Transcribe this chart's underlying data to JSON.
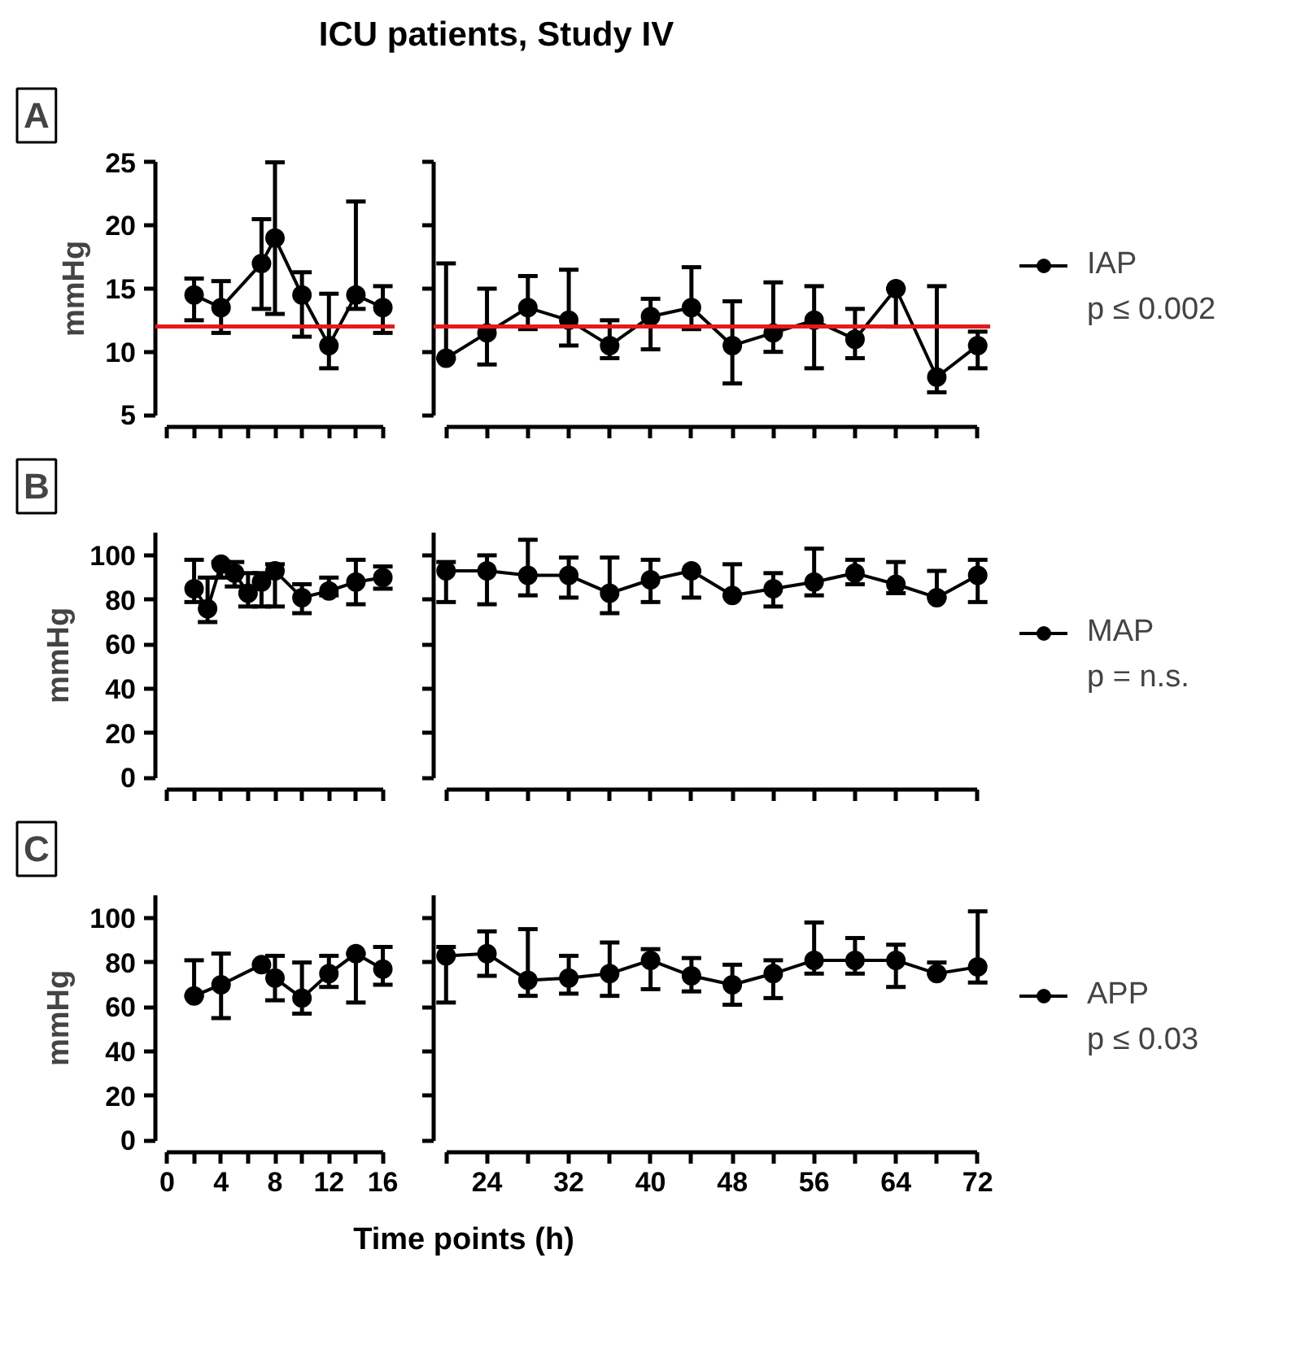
{
  "chart_data": [
    {
      "type": "line",
      "title": "ICU patients, Study IV",
      "ylabel": "mmHg",
      "annotations": [
        "A"
      ],
      "marker": "circle",
      "tick_labels": "y",
      "x": [
        2,
        4,
        7,
        8,
        10,
        12,
        14,
        16
      ],
      "xlim": [
        0,
        16
      ],
      "xticks": [
        0,
        {
          "value": 2,
          "label": null
        },
        4,
        {
          "value": 6,
          "label": null
        },
        8,
        {
          "value": 10,
          "label": null
        },
        12,
        {
          "value": 14,
          "label": null
        },
        16
      ],
      "ylim": [
        5,
        25
      ],
      "yticks": [
        5,
        10,
        15,
        20,
        25
      ],
      "ref_lines": [
        {
          "axis": "y",
          "value": 12,
          "color": "#e41a1c"
        }
      ],
      "series": [
        {
          "color": "#000000",
          "values": [
            14.5,
            13.5,
            17,
            19,
            14.5,
            10.5,
            14.5,
            13.5
          ],
          "errors": [
            [
              12.5,
              15.8
            ],
            [
              11.5,
              15.6
            ],
            [
              13.4,
              20.5
            ],
            [
              13,
              25
            ],
            [
              11.2,
              16.3
            ],
            [
              8.7,
              14.6
            ],
            [
              13.4,
              21.9
            ],
            [
              11.5,
              15.2
            ]
          ]
        }
      ]
    },
    {
      "type": "line",
      "annotations": [
        "p ≤ 0.002"
      ],
      "legend": "right",
      "marker": "circle",
      "tick_labels": false,
      "x": [
        20,
        24,
        28,
        32,
        36,
        40,
        44,
        48,
        52,
        56,
        60,
        64,
        68,
        72
      ],
      "xlim": [
        20,
        72
      ],
      "xticks": [
        {
          "value": 20,
          "label": null
        },
        24,
        {
          "value": 28,
          "label": null
        },
        32,
        {
          "value": 36,
          "label": null
        },
        40,
        {
          "value": 44,
          "label": null
        },
        48,
        {
          "value": 52,
          "label": null
        },
        56,
        {
          "value": 60,
          "label": null
        },
        64,
        {
          "value": 68,
          "label": null
        },
        72
      ],
      "ylim": [
        5,
        25
      ],
      "yticks": [
        5,
        10,
        15,
        20,
        25
      ],
      "ref_lines": [
        {
          "axis": "y",
          "value": 12,
          "color": "#e41a1c"
        }
      ],
      "series": [
        {
          "name": "IAP",
          "color": "#000000",
          "values": [
            9.5,
            11.5,
            13.5,
            12.5,
            10.5,
            12.8,
            13.5,
            10.5,
            11.5,
            12.5,
            11,
            15,
            8,
            10.5
          ],
          "errors": [
            [
              9.5,
              17
            ],
            [
              9,
              15
            ],
            [
              11.8,
              16
            ],
            [
              10.5,
              16.5
            ],
            [
              9.5,
              12.5
            ],
            [
              10.2,
              14.2
            ],
            [
              11.8,
              16.7
            ],
            [
              7.5,
              14
            ],
            [
              10,
              15.5
            ],
            [
              8.7,
              15.2
            ],
            [
              9.5,
              13.4
            ],
            [
              12,
              15
            ],
            [
              6.8,
              15.2
            ],
            [
              8.7,
              11.6
            ]
          ]
        }
      ]
    },
    {
      "type": "line",
      "ylabel": "mmHg",
      "annotations": [
        "B"
      ],
      "marker": "circle",
      "tick_labels": "y",
      "x": [
        2,
        3,
        4,
        5,
        6,
        7,
        8,
        10,
        12,
        14,
        16
      ],
      "xlim": [
        0,
        16
      ],
      "xticks": [
        0,
        {
          "value": 2,
          "label": null
        },
        4,
        {
          "value": 6,
          "label": null
        },
        8,
        {
          "value": 10,
          "label": null
        },
        12,
        {
          "value": 14,
          "label": null
        },
        16
      ],
      "ylim": [
        0,
        110
      ],
      "yticks": [
        0,
        20,
        40,
        60,
        80,
        100
      ],
      "series": [
        {
          "color": "#000000",
          "values": [
            85,
            76,
            96,
            92,
            83,
            88,
            93,
            81,
            84,
            88,
            90
          ],
          "errors": [
            [
              79,
              98
            ],
            [
              70,
              90
            ],
            [
              90,
              97
            ],
            [
              86,
              97
            ],
            [
              77,
              92
            ],
            [
              77,
              92
            ],
            [
              77,
              96
            ],
            [
              74,
              87
            ],
            [
              82,
              90
            ],
            [
              78,
              98
            ],
            [
              85,
              95
            ]
          ]
        }
      ]
    },
    {
      "type": "line",
      "annotations": [
        "p = n.s."
      ],
      "legend": "right",
      "marker": "circle",
      "tick_labels": false,
      "x": [
        20,
        24,
        28,
        32,
        36,
        40,
        44,
        48,
        52,
        56,
        60,
        64,
        68,
        72
      ],
      "xlim": [
        20,
        72
      ],
      "xticks": [
        {
          "value": 20,
          "label": null
        },
        24,
        {
          "value": 28,
          "label": null
        },
        32,
        {
          "value": 36,
          "label": null
        },
        40,
        {
          "value": 44,
          "label": null
        },
        48,
        {
          "value": 52,
          "label": null
        },
        56,
        {
          "value": 60,
          "label": null
        },
        64,
        {
          "value": 68,
          "label": null
        },
        72
      ],
      "ylim": [
        0,
        110
      ],
      "yticks": [
        0,
        20,
        40,
        60,
        80,
        100
      ],
      "series": [
        {
          "name": "MAP",
          "color": "#000000",
          "values": [
            93,
            93,
            91,
            91,
            83,
            89,
            93,
            82,
            85,
            88,
            92,
            87,
            81,
            91
          ],
          "errors": [
            [
              79,
              97
            ],
            [
              78,
              100
            ],
            [
              82,
              107
            ],
            [
              81,
              99
            ],
            [
              74,
              99
            ],
            [
              79,
              98
            ],
            [
              81,
              93
            ],
            [
              82,
              96
            ],
            [
              77,
              92
            ],
            [
              82,
              103
            ],
            [
              87,
              98
            ],
            [
              83,
              97
            ],
            [
              81,
              93
            ],
            [
              79,
              98
            ]
          ]
        }
      ]
    },
    {
      "type": "line",
      "ylabel": "mmHg",
      "annotations": [
        "C"
      ],
      "marker": "circle",
      "x": [
        2,
        4,
        7,
        8,
        10,
        12,
        14,
        16
      ],
      "xlim": [
        0,
        16
      ],
      "xticks": [
        0,
        {
          "value": 2,
          "label": null
        },
        4,
        {
          "value": 6,
          "label": null
        },
        8,
        {
          "value": 10,
          "label": null
        },
        12,
        {
          "value": 14,
          "label": null
        },
        16
      ],
      "ylim": [
        0,
        110
      ],
      "yticks": [
        0,
        20,
        40,
        60,
        80,
        100
      ],
      "series": [
        {
          "color": "#000000",
          "values": [
            65,
            70,
            79,
            73,
            64,
            75,
            84,
            77
          ],
          "errors": [
            [
              65,
              81
            ],
            [
              55,
              84
            ],
            null,
            [
              63,
              83
            ],
            [
              57,
              80
            ],
            [
              69,
              83
            ],
            [
              62,
              84
            ],
            [
              70,
              87
            ]
          ]
        }
      ]
    },
    {
      "type": "line",
      "xlabel": "Time points (h)",
      "annotations": [
        "p ≤ 0.03"
      ],
      "legend": "right",
      "marker": "circle",
      "tick_labels": "x",
      "x": [
        20,
        24,
        28,
        32,
        36,
        40,
        44,
        48,
        52,
        56,
        60,
        64,
        68,
        72
      ],
      "xlim": [
        20,
        72
      ],
      "xticks": [
        {
          "value": 20,
          "label": null
        },
        24,
        {
          "value": 28,
          "label": null
        },
        32,
        {
          "value": 36,
          "label": null
        },
        40,
        {
          "value": 44,
          "label": null
        },
        48,
        {
          "value": 52,
          "label": null
        },
        56,
        {
          "value": 60,
          "label": null
        },
        64,
        {
          "value": 68,
          "label": null
        },
        72
      ],
      "ylim": [
        0,
        110
      ],
      "yticks": [
        0,
        20,
        40,
        60,
        80,
        100
      ],
      "series": [
        {
          "name": "APP",
          "color": "#000000",
          "values": [
            83,
            84,
            72,
            73,
            75,
            81,
            74,
            70,
            75,
            81,
            81,
            81,
            75,
            78
          ],
          "errors": [
            [
              62,
              87
            ],
            [
              74,
              94
            ],
            [
              65,
              95
            ],
            [
              66,
              83
            ],
            [
              65,
              89
            ],
            [
              68,
              86
            ],
            [
              67,
              82
            ],
            [
              61,
              79
            ],
            [
              64,
              81
            ],
            [
              75,
              98
            ],
            [
              75,
              91
            ],
            [
              69,
              88
            ],
            [
              75,
              80
            ],
            [
              71,
              103
            ]
          ]
        }
      ]
    }
  ]
}
